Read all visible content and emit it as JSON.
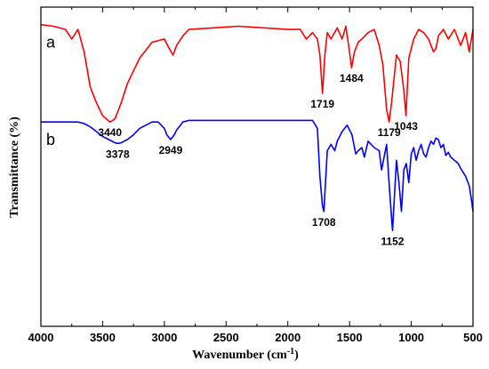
{
  "chart_data": {
    "type": "line",
    "xlabel": "Wavenumber (cm",
    "xlabel_sup": "-1",
    "xlabel_end": ")",
    "ylabel": "Transmittance (%)",
    "xlim": [
      4000,
      500
    ],
    "x_reversed": true,
    "x_ticks": [
      "4000",
      "3500",
      "3000",
      "2500",
      "2000",
      "1500",
      "1000",
      "500"
    ],
    "y_ticks_labeled": false,
    "ylim": [
      0,
      1
    ],
    "series": [
      {
        "label": "a",
        "color": "#ff0000",
        "x": [
          4000,
          3900,
          3800,
          3750,
          3700,
          3650,
          3600,
          3550,
          3500,
          3470,
          3440,
          3400,
          3350,
          3300,
          3250,
          3200,
          3100,
          3000,
          2960,
          2930,
          2900,
          2850,
          2800,
          2600,
          2400,
          2200,
          2000,
          1900,
          1850,
          1800,
          1760,
          1740,
          1719,
          1700,
          1680,
          1650,
          1600,
          1560,
          1530,
          1500,
          1484,
          1460,
          1430,
          1400,
          1350,
          1300,
          1260,
          1230,
          1200,
          1179,
          1160,
          1120,
          1090,
          1060,
          1043,
          1020,
          980,
          940,
          900,
          860,
          820,
          800,
          780,
          740,
          700,
          650,
          600,
          560,
          530,
          500
        ],
        "y": [
          0.945,
          0.94,
          0.93,
          0.9,
          0.93,
          0.86,
          0.75,
          0.7,
          0.66,
          0.65,
          0.64,
          0.65,
          0.7,
          0.76,
          0.8,
          0.84,
          0.89,
          0.9,
          0.87,
          0.85,
          0.88,
          0.91,
          0.93,
          0.935,
          0.94,
          0.935,
          0.93,
          0.93,
          0.9,
          0.92,
          0.9,
          0.85,
          0.73,
          0.85,
          0.92,
          0.9,
          0.935,
          0.9,
          0.94,
          0.86,
          0.81,
          0.86,
          0.89,
          0.9,
          0.92,
          0.93,
          0.88,
          0.82,
          0.68,
          0.64,
          0.7,
          0.85,
          0.83,
          0.74,
          0.66,
          0.84,
          0.9,
          0.93,
          0.92,
          0.9,
          0.86,
          0.87,
          0.91,
          0.93,
          0.9,
          0.93,
          0.88,
          0.92,
          0.86,
          0.93
        ]
      },
      {
        "label": "b",
        "color": "#0000ff",
        "x": [
          4000,
          3900,
          3800,
          3700,
          3650,
          3600,
          3550,
          3500,
          3450,
          3400,
          3378,
          3350,
          3300,
          3250,
          3200,
          3150,
          3100,
          3050,
          3000,
          2980,
          2949,
          2920,
          2900,
          2850,
          2800,
          2600,
          2400,
          2200,
          2000,
          1900,
          1800,
          1760,
          1740,
          1720,
          1708,
          1695,
          1680,
          1650,
          1620,
          1600,
          1560,
          1520,
          1480,
          1450,
          1430,
          1400,
          1380,
          1350,
          1300,
          1260,
          1240,
          1220,
          1200,
          1180,
          1160,
          1152,
          1140,
          1120,
          1100,
          1080,
          1060,
          1040,
          1020,
          1000,
          980,
          960,
          940,
          920,
          900,
          880,
          860,
          840,
          820,
          800,
          780,
          760,
          740,
          720,
          700,
          680,
          650,
          620,
          600,
          560,
          530,
          510,
          500
        ],
        "y": [
          0.64,
          0.64,
          0.64,
          0.64,
          0.635,
          0.625,
          0.61,
          0.595,
          0.585,
          0.575,
          0.573,
          0.575,
          0.585,
          0.6,
          0.62,
          0.63,
          0.64,
          0.64,
          0.62,
          0.6,
          0.585,
          0.6,
          0.615,
          0.64,
          0.645,
          0.645,
          0.645,
          0.645,
          0.645,
          0.645,
          0.645,
          0.62,
          0.47,
          0.38,
          0.36,
          0.45,
          0.55,
          0.57,
          0.55,
          0.58,
          0.61,
          0.63,
          0.6,
          0.54,
          0.55,
          0.56,
          0.53,
          0.58,
          0.56,
          0.55,
          0.49,
          0.53,
          0.57,
          0.45,
          0.34,
          0.3,
          0.38,
          0.52,
          0.45,
          0.36,
          0.49,
          0.51,
          0.45,
          0.54,
          0.56,
          0.52,
          0.55,
          0.57,
          0.54,
          0.53,
          0.56,
          0.58,
          0.57,
          0.59,
          0.585,
          0.56,
          0.57,
          0.535,
          0.545,
          0.53,
          0.52,
          0.51,
          0.495,
          0.47,
          0.44,
          0.39,
          0.36
        ]
      }
    ],
    "annotations": [
      {
        "text": "3440",
        "series": "a",
        "x": 3440
      },
      {
        "text": "1719",
        "series": "a",
        "x": 1719
      },
      {
        "text": "1484",
        "series": "a",
        "x": 1484
      },
      {
        "text": "1179",
        "series": "a",
        "x": 1179
      },
      {
        "text": "1043",
        "series": "a",
        "x": 1043
      },
      {
        "text": "3378",
        "series": "b",
        "x": 3378
      },
      {
        "text": "2949",
        "series": "b",
        "x": 2949
      },
      {
        "text": "1708",
        "series": "b",
        "x": 1708
      },
      {
        "text": "1152",
        "series": "b",
        "x": 1152
      }
    ]
  }
}
